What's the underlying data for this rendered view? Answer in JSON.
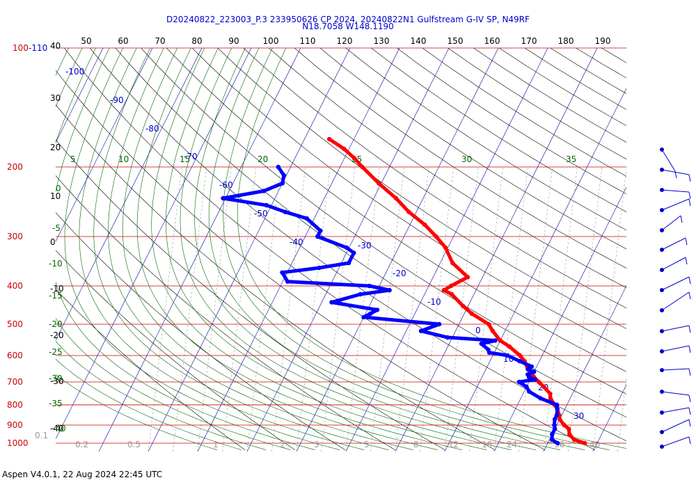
{
  "header": {
    "line1": "D20240822_223003_P.3 233950626 CP 2024, 20240822N1 Gulfstream G-IV SP, N49RF",
    "line2": "N18.7058 W148.1190"
  },
  "footer": "Aspen V4.0.1, 22 Aug 2024  22:45 UTC",
  "colors": {
    "isobar": "#cc0000",
    "pressure_label": "#cc0000",
    "isotherm_label": "#0000cc",
    "isotherm": "#000099",
    "dry_adiabat": "#000000",
    "moist_adiabat": "#006600",
    "mixing_ratio": "#999999",
    "temperature_trace": "#ff0000",
    "dewpoint_trace": "#0000ff",
    "wind_barb": "#0000cc"
  },
  "chart_data": {
    "type": "skew-t log-p",
    "pressure_labels": [
      "100-110",
      "200",
      "300",
      "400",
      "500",
      "600",
      "700",
      "800",
      "900",
      "1000"
    ],
    "isobars_hpa": [
      100,
      200,
      300,
      400,
      500,
      600,
      700,
      800,
      900,
      1000
    ],
    "top_theta_labels": [
      "50",
      "60",
      "70",
      "80",
      "90",
      "100",
      "110",
      "120",
      "130",
      "140",
      "150",
      "160",
      "170",
      "180",
      "190"
    ],
    "left_axis_labels": [
      "40",
      "30",
      "20",
      "10",
      "0",
      "-10",
      "-20",
      "-30",
      "-40"
    ],
    "isotherm_labels": [
      "-100",
      "-90",
      "-80",
      "-70",
      "-60",
      "-50",
      "-40",
      "-30",
      "-20",
      "-10",
      "0",
      "10",
      "20",
      "30"
    ],
    "theta_e_labels": [
      "5",
      "10",
      "15",
      "20",
      "25",
      "30",
      "35",
      "0",
      "-5",
      "-10",
      "-15",
      "-20",
      "-25",
      "-30",
      "-35",
      "-40"
    ],
    "mixing_ratio_labels": [
      "0.1",
      "0.2",
      "0.5",
      "1",
      "2",
      "3",
      "5",
      "8",
      "12",
      "16",
      "24",
      "36",
      "40"
    ],
    "temperature": {
      "name": "Temperature",
      "pressure": [
        1000,
        980,
        950,
        920,
        900,
        870,
        850,
        820,
        800,
        770,
        750,
        720,
        700,
        680,
        650,
        620,
        600,
        570,
        550,
        520,
        500,
        470,
        450,
        420,
        410,
        400,
        380,
        350,
        320,
        300,
        280,
        260,
        240,
        220,
        200,
        190,
        180,
        170
      ],
      "temp_c": [
        27.5,
        25.0,
        23.5,
        22.8,
        21.5,
        20.0,
        19.5,
        18.5,
        17.5,
        16.0,
        15.5,
        13.5,
        12.0,
        10.5,
        8.5,
        7.0,
        5.5,
        2.5,
        0.0,
        -2.5,
        -4.0,
        -8.5,
        -11.0,
        -14.5,
        -16.5,
        -15.5,
        -13.0,
        -17.5,
        -20.5,
        -23.5,
        -27.0,
        -31.5,
        -35.5,
        -40.5,
        -45.5,
        -48.0,
        -51.0,
        -55.0
      ]
    },
    "dewpoint": {
      "name": "Dewpoint",
      "pressure": [
        1000,
        980,
        950,
        920,
        900,
        870,
        850,
        820,
        800,
        770,
        740,
        720,
        700,
        690,
        680,
        670,
        660,
        650,
        640,
        620,
        600,
        590,
        580,
        560,
        550,
        540,
        520,
        500,
        480,
        470,
        460,
        440,
        420,
        410,
        400,
        390,
        370,
        360,
        350,
        330,
        320,
        300,
        290,
        270,
        260,
        250,
        240,
        230,
        220,
        210,
        200
      ],
      "dewp_c": [
        22.0,
        20.5,
        20.0,
        20.0,
        19.5,
        19.0,
        19.0,
        18.5,
        18.0,
        14.0,
        11.0,
        10.0,
        8.0,
        11.0,
        9.5,
        9.0,
        10.0,
        8.5,
        9.0,
        6.0,
        3.0,
        -1.0,
        -1.5,
        -3.5,
        -1.0,
        -11.0,
        -17.0,
        -14.0,
        -30.0,
        -29.0,
        -28.0,
        -38.0,
        -33.0,
        -27.5,
        -32.0,
        -49.0,
        -51.0,
        -44.0,
        -38.5,
        -38.5,
        -40.5,
        -47.5,
        -47.5,
        -51.5,
        -56.5,
        -61.0,
        -70.5,
        -63.0,
        -60.0,
        -60.5,
        -62.5
      ]
    }
  }
}
